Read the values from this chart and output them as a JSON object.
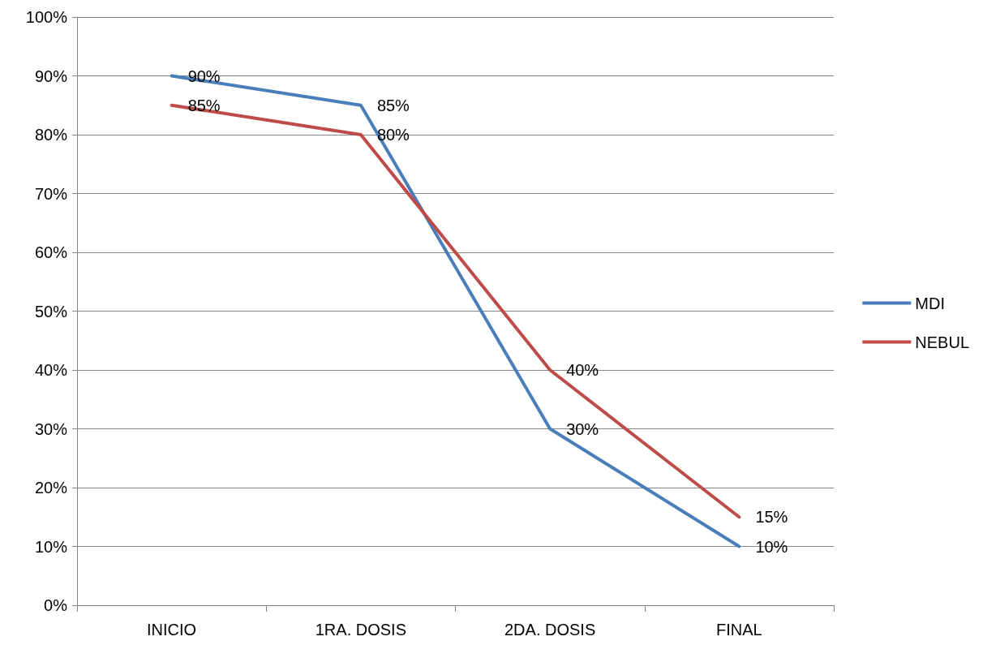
{
  "chart_data": {
    "type": "line",
    "categories": [
      "INICIO",
      "1RA. DOSIS",
      "2DA. DOSIS",
      "FINAL"
    ],
    "series": [
      {
        "name": "MDI",
        "color": "#4a7ebb",
        "values": [
          90,
          85,
          30,
          10
        ],
        "value_labels": [
          "90%",
          "85%",
          "30%",
          "10%"
        ]
      },
      {
        "name": "NEBUL",
        "color": "#be4b48",
        "values": [
          85,
          80,
          40,
          15
        ],
        "value_labels": [
          "85%",
          "80%",
          "40%",
          "15%"
        ]
      }
    ],
    "ylim": [
      0,
      100
    ],
    "yticks": [
      {
        "value": 0,
        "label": "0%"
      },
      {
        "value": 10,
        "label": "10%"
      },
      {
        "value": 20,
        "label": "20%"
      },
      {
        "value": 30,
        "label": "30%"
      },
      {
        "value": 40,
        "label": "40%"
      },
      {
        "value": 50,
        "label": "50%"
      },
      {
        "value": 60,
        "label": "60%"
      },
      {
        "value": 70,
        "label": "70%"
      },
      {
        "value": 80,
        "label": "80%"
      },
      {
        "value": 90,
        "label": "90%"
      },
      {
        "value": 100,
        "label": "100%"
      }
    ],
    "grid": "y",
    "legend": "right",
    "marker": "none",
    "line_style": "solid"
  }
}
